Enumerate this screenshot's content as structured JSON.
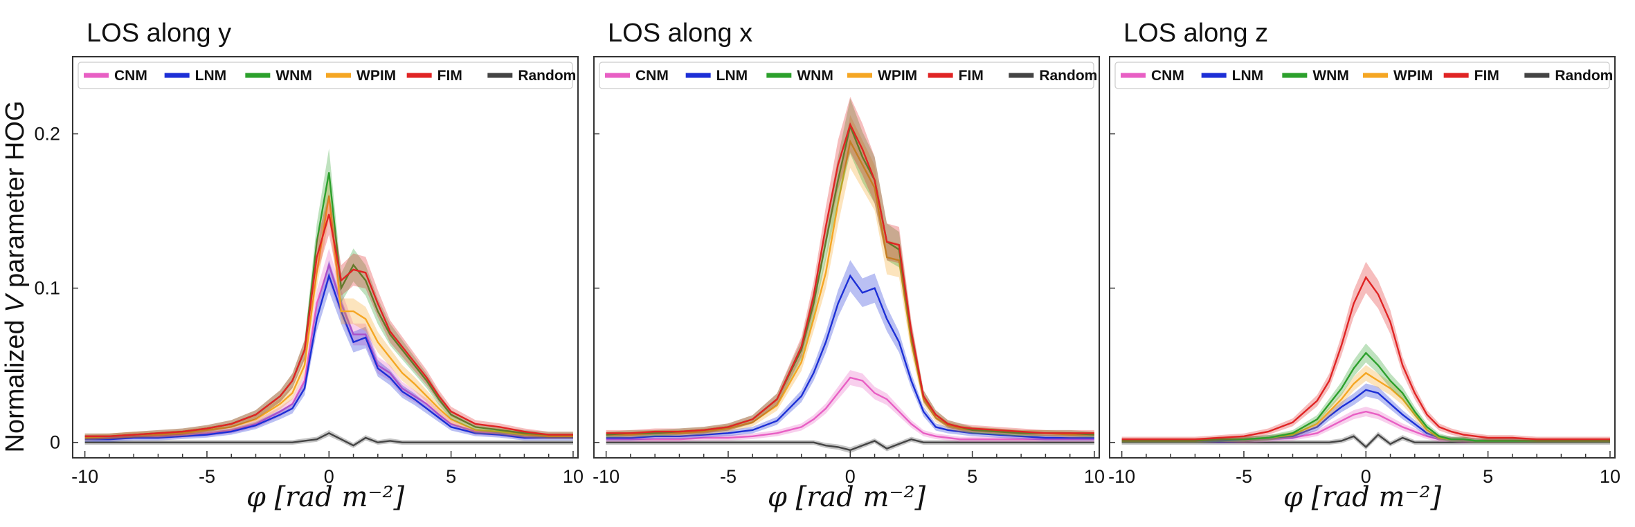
{
  "chart_data": {
    "type": "line",
    "ylabel_prefix": "Normalized ",
    "ylabel_var": "V",
    "ylabel_suffix": " parameter HOG",
    "xlabel": "φ [rad m⁻²]",
    "xlim": [
      -10.5,
      10.2
    ],
    "ylim": [
      -0.01,
      0.25
    ],
    "xticks": [
      -10,
      -5,
      0,
      5,
      10
    ],
    "xtick_labels": [
      "-10",
      "-5",
      "0",
      "5",
      "10"
    ],
    "yticks": [
      0,
      0.1,
      0.2
    ],
    "ytick_labels": [
      "0",
      "0.1",
      "0.2"
    ],
    "legend": {
      "position": "top",
      "entries": [
        "CNM",
        "LNM",
        "WNM",
        "WPIM",
        "FIM",
        "Random"
      ]
    },
    "series_colors": {
      "CNM": "#e85fc4",
      "LNM": "#1c2fd6",
      "WNM": "#2ca02c",
      "WPIM": "#f5a623",
      "FIM": "#e02424",
      "Random": "#444444"
    },
    "x": [
      -10,
      -9,
      -8,
      -7,
      -6,
      -5,
      -4,
      -3,
      -2,
      -1.5,
      -1,
      -0.5,
      0,
      0.5,
      1,
      1.5,
      2,
      2.5,
      3,
      3.5,
      4,
      4.5,
      5,
      6,
      7,
      8,
      9,
      10
    ],
    "panels": [
      {
        "title": "LOS along y",
        "series": [
          {
            "name": "CNM",
            "values": [
              0.003,
              0.003,
              0.004,
              0.004,
              0.005,
              0.006,
              0.008,
              0.012,
              0.02,
              0.025,
              0.04,
              0.09,
              0.115,
              0.09,
              0.07,
              0.07,
              0.05,
              0.045,
              0.035,
              0.03,
              0.025,
              0.018,
              0.012,
              0.007,
              0.006,
              0.004,
              0.004,
              0.004
            ]
          },
          {
            "name": "LNM",
            "values": [
              0.002,
              0.002,
              0.003,
              0.003,
              0.004,
              0.005,
              0.007,
              0.011,
              0.018,
              0.022,
              0.035,
              0.08,
              0.108,
              0.085,
              0.065,
              0.068,
              0.048,
              0.042,
              0.033,
              0.028,
              0.022,
              0.016,
              0.01,
              0.006,
              0.005,
              0.003,
              0.003,
              0.003
            ]
          },
          {
            "name": "WNM",
            "values": [
              0.004,
              0.004,
              0.005,
              0.006,
              0.007,
              0.009,
              0.012,
              0.018,
              0.03,
              0.04,
              0.06,
              0.13,
              0.175,
              0.1,
              0.115,
              0.105,
              0.085,
              0.07,
              0.06,
              0.05,
              0.04,
              0.028,
              0.018,
              0.01,
              0.008,
              0.006,
              0.005,
              0.005
            ]
          },
          {
            "name": "WPIM",
            "values": [
              0.003,
              0.004,
              0.005,
              0.005,
              0.006,
              0.008,
              0.01,
              0.015,
              0.025,
              0.032,
              0.05,
              0.11,
              0.16,
              0.085,
              0.085,
              0.08,
              0.065,
              0.055,
              0.045,
              0.038,
              0.03,
              0.022,
              0.015,
              0.008,
              0.007,
              0.005,
              0.004,
              0.004
            ]
          },
          {
            "name": "FIM",
            "values": [
              0.004,
              0.004,
              0.005,
              0.006,
              0.007,
              0.009,
              0.012,
              0.018,
              0.03,
              0.04,
              0.06,
              0.12,
              0.148,
              0.105,
              0.112,
              0.11,
              0.09,
              0.072,
              0.062,
              0.052,
              0.042,
              0.03,
              0.02,
              0.012,
              0.01,
              0.007,
              0.005,
              0.005
            ]
          },
          {
            "name": "Random",
            "values": [
              0,
              0,
              0,
              0,
              0,
              0,
              0,
              0,
              0,
              0,
              0.001,
              0.002,
              0.006,
              0.002,
              -0.002,
              0.003,
              0,
              0.001,
              0,
              0,
              0,
              0,
              0,
              0,
              0,
              0,
              0,
              0
            ]
          }
        ]
      },
      {
        "title": "LOS along x",
        "series": [
          {
            "name": "CNM",
            "values": [
              0.002,
              0.002,
              0.002,
              0.002,
              0.003,
              0.003,
              0.004,
              0.006,
              0.01,
              0.015,
              0.022,
              0.032,
              0.042,
              0.04,
              0.032,
              0.028,
              0.02,
              0.012,
              0.006,
              0.004,
              0.003,
              0.002,
              0.002,
              0.002,
              0.002,
              0.002,
              0.002,
              0.002
            ]
          },
          {
            "name": "LNM",
            "values": [
              0.003,
              0.003,
              0.004,
              0.004,
              0.005,
              0.006,
              0.008,
              0.014,
              0.03,
              0.045,
              0.065,
              0.09,
              0.108,
              0.097,
              0.1,
              0.08,
              0.065,
              0.04,
              0.02,
              0.01,
              0.008,
              0.007,
              0.006,
              0.005,
              0.004,
              0.003,
              0.003,
              0.003
            ]
          },
          {
            "name": "WNM",
            "values": [
              0.005,
              0.006,
              0.006,
              0.007,
              0.008,
              0.01,
              0.015,
              0.028,
              0.06,
              0.09,
              0.13,
              0.17,
              0.205,
              0.185,
              0.17,
              0.13,
              0.125,
              0.07,
              0.03,
              0.018,
              0.012,
              0.01,
              0.008,
              0.007,
              0.006,
              0.006,
              0.006,
              0.005
            ]
          },
          {
            "name": "WPIM",
            "values": [
              0.005,
              0.005,
              0.006,
              0.006,
              0.007,
              0.009,
              0.013,
              0.024,
              0.052,
              0.08,
              0.11,
              0.155,
              0.195,
              0.18,
              0.165,
              0.12,
              0.118,
              0.065,
              0.028,
              0.016,
              0.011,
              0.009,
              0.008,
              0.007,
              0.006,
              0.006,
              0.005,
              0.005
            ]
          },
          {
            "name": "FIM",
            "values": [
              0.006,
              0.006,
              0.007,
              0.007,
              0.008,
              0.01,
              0.015,
              0.028,
              0.062,
              0.095,
              0.14,
              0.18,
              0.206,
              0.19,
              0.17,
              0.13,
              0.128,
              0.072,
              0.03,
              0.018,
              0.012,
              0.01,
              0.009,
              0.008,
              0.007,
              0.006,
              0.006,
              0.006
            ]
          },
          {
            "name": "Random",
            "values": [
              0,
              0,
              0,
              0,
              0,
              0,
              0,
              0,
              0,
              0,
              -0.002,
              -0.003,
              -0.005,
              -0.002,
              0.001,
              -0.004,
              -0.001,
              0.002,
              0,
              0,
              0,
              0,
              0,
              0,
              0,
              0,
              0,
              0
            ]
          }
        ]
      },
      {
        "title": "LOS along z",
        "series": [
          {
            "name": "CNM",
            "values": [
              0.001,
              0.001,
              0.001,
              0.001,
              0.001,
              0.001,
              0.002,
              0.003,
              0.006,
              0.01,
              0.014,
              0.018,
              0.02,
              0.018,
              0.014,
              0.01,
              0.007,
              0.004,
              0.002,
              0.002,
              0.001,
              0.001,
              0.001,
              0.001,
              0.001,
              0.001,
              0.001,
              0.001
            ]
          },
          {
            "name": "LNM",
            "values": [
              0.001,
              0.001,
              0.001,
              0.001,
              0.001,
              0.002,
              0.003,
              0.004,
              0.01,
              0.017,
              0.023,
              0.028,
              0.034,
              0.032,
              0.025,
              0.018,
              0.012,
              0.006,
              0.003,
              0.002,
              0.002,
              0.001,
              0.001,
              0.001,
              0.001,
              0.001,
              0.001,
              0.001
            ]
          },
          {
            "name": "WNM",
            "values": [
              0.001,
              0.001,
              0.001,
              0.001,
              0.002,
              0.002,
              0.003,
              0.006,
              0.015,
              0.025,
              0.035,
              0.048,
              0.058,
              0.05,
              0.04,
              0.032,
              0.02,
              0.01,
              0.004,
              0.002,
              0.002,
              0.001,
              0.001,
              0.001,
              0.001,
              0.001,
              0.001,
              0.001
            ]
          },
          {
            "name": "WPIM",
            "values": [
              0.001,
              0.001,
              0.001,
              0.001,
              0.002,
              0.002,
              0.003,
              0.005,
              0.012,
              0.02,
              0.028,
              0.038,
              0.045,
              0.04,
              0.035,
              0.028,
              0.018,
              0.008,
              0.003,
              0.002,
              0.002,
              0.001,
              0.001,
              0.001,
              0.001,
              0.001,
              0.001,
              0.001
            ]
          },
          {
            "name": "FIM",
            "values": [
              0.002,
              0.002,
              0.002,
              0.002,
              0.003,
              0.004,
              0.007,
              0.013,
              0.027,
              0.04,
              0.063,
              0.09,
              0.107,
              0.096,
              0.078,
              0.05,
              0.032,
              0.018,
              0.01,
              0.007,
              0.005,
              0.004,
              0.003,
              0.003,
              0.002,
              0.002,
              0.002,
              0.002
            ]
          },
          {
            "name": "Random",
            "values": [
              0,
              0,
              0,
              0,
              0,
              0,
              0,
              0,
              0,
              0,
              0.001,
              0.004,
              -0.003,
              0.005,
              -0.001,
              0.003,
              0,
              0,
              0,
              0,
              0,
              0,
              0,
              0,
              0,
              0,
              0,
              0
            ]
          }
        ]
      }
    ]
  }
}
